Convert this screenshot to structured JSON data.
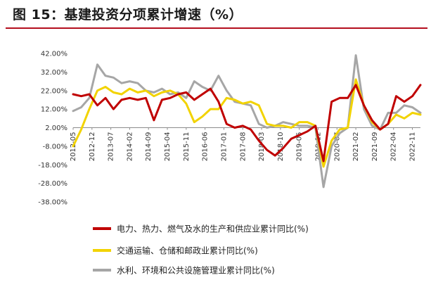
{
  "title": "图 15：基建投资分项累计增速（%）",
  "colors": {
    "title_rule": "#b40f1e"
  },
  "chart_data": {
    "type": "line",
    "title": "图 15：基建投资分项累计增速（%）",
    "ylim": [
      -38,
      42
    ],
    "yticks": [
      "42.00%",
      "32.00%",
      "22.00%",
      "12.00%",
      "2.00%",
      "-8.00%",
      "-18.00%",
      "-28.00%",
      "-38.00%"
    ],
    "ytick_values": [
      42,
      32,
      22,
      12,
      2,
      -8,
      -18,
      -28,
      -38
    ],
    "xticks": [
      "2012-05",
      "2012-12",
      "2013-07",
      "2014-02",
      "2014-09",
      "2015-04",
      "2015-11",
      "2016-06",
      "2017-01",
      "2017-08",
      "2018-03",
      "2018-10",
      "2019-05",
      "2019-12",
      "2020-07",
      "2021-02",
      "2021-09",
      "2022-04",
      "2022-11"
    ],
    "baseline": 2,
    "grid": false,
    "legend": "bottom",
    "x_range": [
      "2012-05",
      "2023-02"
    ],
    "series": [
      {
        "name": "电力、热力、燃气及水的生产和供应业累计同比(%)",
        "color": "#c00000",
        "points": [
          [
            "2012-05",
            20
          ],
          [
            "2012-08",
            19
          ],
          [
            "2012-11",
            20
          ],
          [
            "2013-02",
            14
          ],
          [
            "2013-05",
            18
          ],
          [
            "2013-08",
            12
          ],
          [
            "2013-11",
            17
          ],
          [
            "2014-02",
            18
          ],
          [
            "2014-05",
            17
          ],
          [
            "2014-08",
            18
          ],
          [
            "2014-11",
            6
          ],
          [
            "2015-02",
            17
          ],
          [
            "2015-05",
            18
          ],
          [
            "2015-08",
            20
          ],
          [
            "2015-11",
            21
          ],
          [
            "2016-02",
            17
          ],
          [
            "2016-05",
            20
          ],
          [
            "2016-08",
            23
          ],
          [
            "2016-11",
            16
          ],
          [
            "2017-02",
            4
          ],
          [
            "2017-05",
            2
          ],
          [
            "2017-08",
            3
          ],
          [
            "2017-11",
            1
          ],
          [
            "2018-02",
            -5
          ],
          [
            "2018-05",
            -10
          ],
          [
            "2018-08",
            -13
          ],
          [
            "2018-11",
            -9
          ],
          [
            "2019-02",
            -4
          ],
          [
            "2019-05",
            -2
          ],
          [
            "2019-08",
            0
          ],
          [
            "2019-11",
            3
          ],
          [
            "2020-02",
            -16
          ],
          [
            "2020-05",
            16
          ],
          [
            "2020-08",
            18
          ],
          [
            "2020-11",
            18
          ],
          [
            "2021-02",
            25
          ],
          [
            "2021-05",
            14
          ],
          [
            "2021-08",
            6
          ],
          [
            "2021-11",
            1
          ],
          [
            "2022-02",
            4
          ],
          [
            "2022-05",
            19
          ],
          [
            "2022-08",
            16
          ],
          [
            "2022-11",
            19
          ],
          [
            "2023-02",
            25
          ]
        ]
      },
      {
        "name": "交通运输、仓储和邮政业累计同比(%)",
        "color": "#f2d300",
        "points": [
          [
            "2012-05",
            -8
          ],
          [
            "2012-08",
            1
          ],
          [
            "2012-11",
            12
          ],
          [
            "2013-02",
            22
          ],
          [
            "2013-05",
            24
          ],
          [
            "2013-08",
            21
          ],
          [
            "2013-11",
            20
          ],
          [
            "2014-02",
            23
          ],
          [
            "2014-05",
            21
          ],
          [
            "2014-08",
            22
          ],
          [
            "2014-11",
            19
          ],
          [
            "2015-02",
            21
          ],
          [
            "2015-05",
            22
          ],
          [
            "2015-08",
            20
          ],
          [
            "2015-11",
            15
          ],
          [
            "2016-02",
            5
          ],
          [
            "2016-05",
            8
          ],
          [
            "2016-08",
            12
          ],
          [
            "2016-11",
            12
          ],
          [
            "2017-02",
            18
          ],
          [
            "2017-05",
            17
          ],
          [
            "2017-08",
            15
          ],
          [
            "2017-11",
            16
          ],
          [
            "2018-02",
            14
          ],
          [
            "2018-05",
            4
          ],
          [
            "2018-08",
            3
          ],
          [
            "2018-11",
            3
          ],
          [
            "2019-02",
            2
          ],
          [
            "2019-05",
            5
          ],
          [
            "2019-08",
            5
          ],
          [
            "2019-11",
            3
          ],
          [
            "2020-02",
            -19
          ],
          [
            "2020-05",
            -5
          ],
          [
            "2020-08",
            1
          ],
          [
            "2020-11",
            2
          ],
          [
            "2021-02",
            28
          ],
          [
            "2021-05",
            14
          ],
          [
            "2021-08",
            5
          ],
          [
            "2021-11",
            1
          ],
          [
            "2022-02",
            4
          ],
          [
            "2022-05",
            9
          ],
          [
            "2022-08",
            7
          ],
          [
            "2022-11",
            10
          ],
          [
            "2023-02",
            9
          ]
        ]
      },
      {
        "name": "水利、环境和公共设施管理业累计同比(%)",
        "color": "#a6a6a6",
        "points": [
          [
            "2012-05",
            11
          ],
          [
            "2012-08",
            13
          ],
          [
            "2012-11",
            18
          ],
          [
            "2013-02",
            36
          ],
          [
            "2013-05",
            30
          ],
          [
            "2013-08",
            29
          ],
          [
            "2013-11",
            26
          ],
          [
            "2014-02",
            27
          ],
          [
            "2014-05",
            26
          ],
          [
            "2014-08",
            22
          ],
          [
            "2014-11",
            21
          ],
          [
            "2015-02",
            23
          ],
          [
            "2015-05",
            20
          ],
          [
            "2015-08",
            21
          ],
          [
            "2015-11",
            18
          ],
          [
            "2016-02",
            27
          ],
          [
            "2016-05",
            24
          ],
          [
            "2016-08",
            22
          ],
          [
            "2016-11",
            30
          ],
          [
            "2017-02",
            22
          ],
          [
            "2017-05",
            16
          ],
          [
            "2017-08",
            15
          ],
          [
            "2017-11",
            14
          ],
          [
            "2018-02",
            4
          ],
          [
            "2018-05",
            2
          ],
          [
            "2018-08",
            3
          ],
          [
            "2018-11",
            5
          ],
          [
            "2019-02",
            4
          ],
          [
            "2019-05",
            3
          ],
          [
            "2019-08",
            3
          ],
          [
            "2019-11",
            2
          ],
          [
            "2020-02",
            -30
          ],
          [
            "2020-05",
            -8
          ],
          [
            "2020-08",
            -1
          ],
          [
            "2020-11",
            2
          ],
          [
            "2021-02",
            41
          ],
          [
            "2021-05",
            12
          ],
          [
            "2021-08",
            3
          ],
          [
            "2021-11",
            1
          ],
          [
            "2022-02",
            10
          ],
          [
            "2022-05",
            10
          ],
          [
            "2022-08",
            14
          ],
          [
            "2022-11",
            13
          ],
          [
            "2023-02",
            10
          ]
        ]
      }
    ]
  }
}
